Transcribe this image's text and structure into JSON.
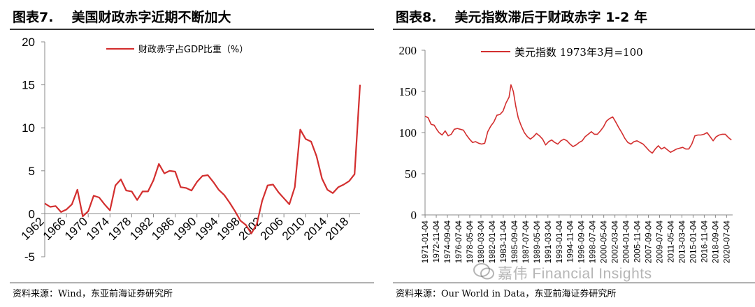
{
  "left": {
    "title_num": "图表7.",
    "title_text": "美国财政赤字近期不断加大",
    "source": "资料来源：Wind，东亚前海证券研究所"
  },
  "right": {
    "title_num": "图表8.",
    "title_text": "美元指数滞后于财政赤字 1-2 年",
    "source": "资料来源：Our World in Data，东亚前海证券研究所"
  },
  "watermark": "嘉伟 Financial Insights",
  "colors": {
    "line": "#d32f2f",
    "axis": "#888888"
  },
  "chart_data": [
    {
      "type": "line",
      "title": "",
      "xlabel": "",
      "ylabel": "",
      "ylim": [
        -5,
        20
      ],
      "yticks": [
        -5,
        0,
        5,
        10,
        15,
        20
      ],
      "xlim": [
        1962,
        2020
      ],
      "xticks": [
        1962,
        1966,
        1970,
        1974,
        1978,
        1982,
        1986,
        1990,
        1994,
        1998,
        2002,
        2006,
        2010,
        2014,
        2018
      ],
      "legend_position": "top-center",
      "grid": false,
      "series": [
        {
          "name": "财政赤字占GDP比重（%）",
          "x": [
            1962,
            1963,
            1964,
            1965,
            1966,
            1967,
            1968,
            1969,
            1970,
            1971,
            1972,
            1973,
            1974,
            1975,
            1976,
            1977,
            1978,
            1979,
            1980,
            1981,
            1982,
            1983,
            1984,
            1985,
            1986,
            1987,
            1988,
            1989,
            1990,
            1991,
            1992,
            1993,
            1994,
            1995,
            1996,
            1997,
            1998,
            1999,
            2000,
            2001,
            2002,
            2003,
            2004,
            2005,
            2006,
            2007,
            2008,
            2009,
            2010,
            2011,
            2012,
            2013,
            2014,
            2015,
            2016,
            2017,
            2018,
            2019,
            2020
          ],
          "values": [
            1.2,
            0.8,
            0.9,
            0.2,
            0.5,
            1.1,
            2.8,
            -0.3,
            0.3,
            2.1,
            1.9,
            1.1,
            0.4,
            3.3,
            4.0,
            2.7,
            2.6,
            1.6,
            2.6,
            2.6,
            3.9,
            5.8,
            4.7,
            5.0,
            4.9,
            3.1,
            3.0,
            2.7,
            3.7,
            4.4,
            4.5,
            3.7,
            2.8,
            2.2,
            1.3,
            0.3,
            -0.8,
            -1.3,
            -2.3,
            -1.2,
            1.5,
            3.3,
            3.4,
            2.5,
            1.8,
            1.1,
            3.1,
            9.8,
            8.7,
            8.4,
            6.7,
            4.1,
            2.8,
            2.4,
            3.1,
            3.4,
            3.8,
            4.6,
            15.0
          ]
        }
      ]
    },
    {
      "type": "line",
      "title": "",
      "xlabel": "",
      "ylabel": "",
      "ylim": [
        0,
        200
      ],
      "yticks": [
        0,
        50,
        100,
        150,
        200
      ],
      "xlim": [
        1971.0,
        2021.5
      ],
      "xticks": [
        "1971-01-04",
        "1972-11-04",
        "1974-09-04",
        "1976-07-04",
        "1978-05-04",
        "1980-03-04",
        "1982-01-04",
        "1983-11-04",
        "1985-09-04",
        "1987-07-04",
        "1989-05-04",
        "1991-03-04",
        "1993-01-04",
        "1994-11-04",
        "1996-09-04",
        "1998-07-04",
        "2000-05-04",
        "2002-03-04",
        "2004-01-04",
        "2005-11-04",
        "2007-09-04",
        "2009-07-04",
        "2011-05-04",
        "2013-03-04",
        "2015-01-04",
        "2016-11-04",
        "2018-09-04",
        "2020-07-04"
      ],
      "legend_position": "top-left",
      "grid": false,
      "series": [
        {
          "name": "美元指数 1973年3月=100",
          "x": [
            1971.0,
            1971.5,
            1972.0,
            1972.5,
            1973.0,
            1973.3,
            1973.8,
            1974.3,
            1974.8,
            1975.3,
            1975.8,
            1976.3,
            1976.8,
            1977.3,
            1977.8,
            1978.3,
            1978.8,
            1979.3,
            1979.8,
            1980.3,
            1980.8,
            1981.3,
            1981.8,
            1982.3,
            1982.8,
            1983.3,
            1983.8,
            1984.3,
            1984.8,
            1985.1,
            1985.5,
            1985.9,
            1986.3,
            1986.8,
            1987.3,
            1987.8,
            1988.3,
            1988.8,
            1989.3,
            1989.8,
            1990.3,
            1990.8,
            1991.3,
            1991.8,
            1992.3,
            1992.8,
            1993.3,
            1993.8,
            1994.3,
            1994.8,
            1995.3,
            1995.8,
            1996.3,
            1996.8,
            1997.3,
            1997.8,
            1998.3,
            1998.8,
            1999.3,
            1999.8,
            2000.3,
            2000.8,
            2001.3,
            2001.8,
            2002.3,
            2002.8,
            2003.3,
            2003.8,
            2004.3,
            2004.8,
            2005.3,
            2005.8,
            2006.3,
            2006.8,
            2007.3,
            2007.8,
            2008.3,
            2008.8,
            2009.3,
            2009.8,
            2010.3,
            2010.8,
            2011.3,
            2011.8,
            2012.3,
            2012.8,
            2013.3,
            2013.8,
            2014.3,
            2014.8,
            2015.3,
            2015.8,
            2016.3,
            2016.8,
            2017.3,
            2017.8,
            2018.3,
            2018.8,
            2019.3,
            2019.8,
            2020.3,
            2020.8,
            2021.3
          ],
          "values": [
            120,
            118,
            110,
            109,
            103,
            100,
            97,
            102,
            96,
            98,
            104,
            105,
            104,
            103,
            97,
            92,
            88,
            89,
            87,
            86,
            87,
            101,
            108,
            113,
            121,
            122,
            126,
            136,
            143,
            158,
            150,
            132,
            118,
            108,
            100,
            95,
            92,
            95,
            99,
            96,
            92,
            85,
            89,
            91,
            88,
            86,
            90,
            92,
            90,
            86,
            83,
            85,
            88,
            90,
            95,
            98,
            101,
            98,
            98,
            102,
            107,
            114,
            117,
            119,
            113,
            106,
            100,
            93,
            88,
            86,
            89,
            90,
            88,
            86,
            82,
            78,
            75,
            80,
            84,
            80,
            82,
            79,
            76,
            78,
            80,
            81,
            82,
            80,
            80,
            86,
            96,
            97,
            97,
            98,
            100,
            95,
            90,
            95,
            97,
            98,
            98,
            94,
            91
          ]
        }
      ]
    }
  ]
}
